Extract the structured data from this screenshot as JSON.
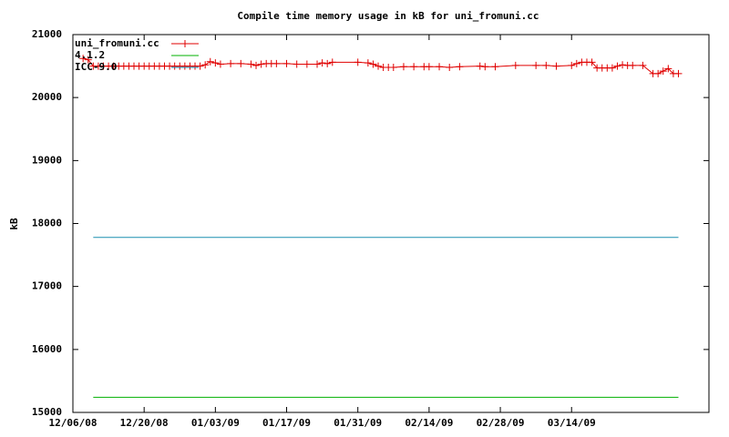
{
  "chart_data": {
    "type": "line",
    "title": "Compile time memory usage in kB for uni_fromuni.cc",
    "y_label": "kB",
    "xlim": [
      "12/06/08",
      "04/10/09"
    ],
    "xticks": [
      "12/06/08",
      "12/20/08",
      "01/03/09",
      "01/17/09",
      "01/31/09",
      "02/14/09",
      "02/28/09",
      "03/14/09"
    ],
    "ylim": [
      15000,
      21000
    ],
    "yticks": [
      15000,
      16000,
      17000,
      18000,
      19000,
      20000,
      21000
    ],
    "legend": "top-left",
    "series": [
      {
        "name": "uni_fromuni.cc",
        "color": "#e00000",
        "marker": "plus",
        "x": [
          "12/08/08",
          "12/09/08",
          "12/10/08",
          "12/11/08",
          "12/12/08",
          "12/13/08",
          "12/14/08",
          "12/15/08",
          "12/16/08",
          "12/17/08",
          "12/18/08",
          "12/19/08",
          "12/20/08",
          "12/21/08",
          "12/22/08",
          "12/23/08",
          "12/24/08",
          "12/25/08",
          "12/26/08",
          "12/27/08",
          "12/28/08",
          "12/29/08",
          "12/30/08",
          "12/31/08",
          "01/01/09",
          "01/02/09",
          "01/03/09",
          "01/04/09",
          "01/06/09",
          "01/08/09",
          "01/10/09",
          "01/11/09",
          "01/12/09",
          "01/13/09",
          "01/14/09",
          "01/15/09",
          "01/17/09",
          "01/19/09",
          "01/21/09",
          "01/23/09",
          "01/24/09",
          "01/25/09",
          "01/26/09",
          "01/31/09",
          "02/02/09",
          "02/03/09",
          "02/04/09",
          "02/05/09",
          "02/06/09",
          "02/07/09",
          "02/09/09",
          "02/11/09",
          "02/13/09",
          "02/14/09",
          "02/16/09",
          "02/18/09",
          "02/20/09",
          "02/24/09",
          "02/25/09",
          "02/27/09",
          "03/03/09",
          "03/07/09",
          "03/09/09",
          "03/11/09",
          "03/14/09",
          "03/15/09",
          "03/16/09",
          "03/17/09",
          "03/18/09",
          "03/19/09",
          "03/20/09",
          "03/21/09",
          "03/22/09",
          "03/23/09",
          "03/24/09",
          "03/25/09",
          "03/26/09",
          "03/28/09",
          "03/30/09",
          "03/31/09",
          "04/01/09",
          "04/02/09",
          "04/03/09",
          "04/04/09"
        ],
        "values": [
          20620,
          20600,
          20500,
          20500,
          20500,
          20500,
          20500,
          20500,
          20500,
          20500,
          20500,
          20500,
          20500,
          20500,
          20500,
          20500,
          20500,
          20500,
          20500,
          20500,
          20500,
          20500,
          20500,
          20500,
          20520,
          20570,
          20550,
          20530,
          20540,
          20540,
          20530,
          20510,
          20530,
          20540,
          20540,
          20540,
          20540,
          20530,
          20530,
          20530,
          20550,
          20540,
          20560,
          20560,
          20550,
          20530,
          20500,
          20480,
          20480,
          20480,
          20490,
          20490,
          20490,
          20490,
          20490,
          20480,
          20490,
          20500,
          20490,
          20490,
          20510,
          20510,
          20510,
          20500,
          20510,
          20540,
          20560,
          20560,
          20560,
          20470,
          20470,
          20470,
          20470,
          20500,
          20520,
          20510,
          20510,
          20510,
          20380,
          20380,
          20420,
          20460,
          20380,
          20380
        ]
      },
      {
        "name": "4.1.2",
        "color": "#00b000",
        "x": [
          "12/10/08",
          "04/04/09"
        ],
        "values": [
          15240,
          15240
        ]
      },
      {
        "name": "ICC-9.0",
        "color": "#1a8fb0",
        "x": [
          "12/10/08",
          "04/04/09"
        ],
        "values": [
          17780,
          17780
        ]
      }
    ]
  }
}
